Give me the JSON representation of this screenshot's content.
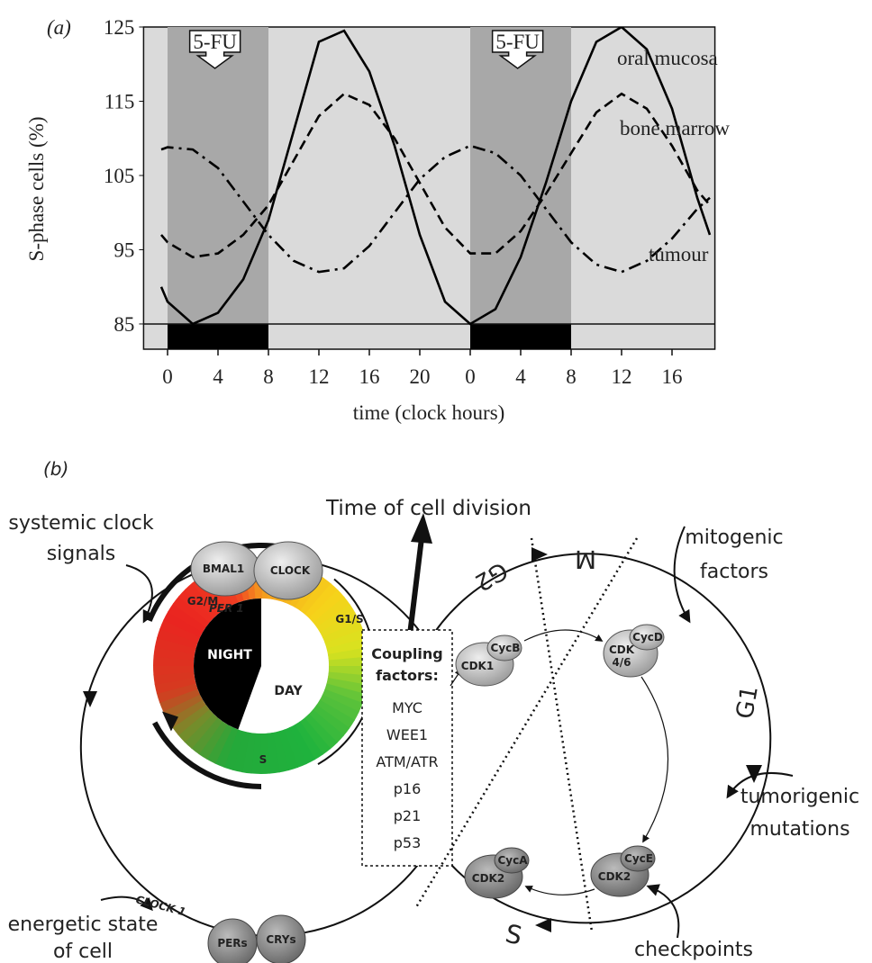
{
  "chart_data": {
    "type": "line",
    "panel_label": "(a)",
    "xlabel": "time (clock hours)",
    "ylabel": "S-phase cells (%)",
    "x": [
      -0.5,
      0,
      2,
      4,
      6,
      8,
      10,
      12,
      14,
      16,
      18,
      20,
      22,
      24,
      26,
      28,
      30,
      32,
      34,
      36,
      38,
      40,
      42,
      43
    ],
    "series": [
      {
        "name": "oral mucosa",
        "color": "#000000",
        "dash": "solid",
        "values": [
          90,
          88,
          85,
          86.5,
          91,
          99,
          111,
          123,
          124.5,
          119,
          109,
          97,
          88,
          85,
          87,
          94,
          104,
          115,
          123,
          125,
          122,
          114,
          102,
          97
        ]
      },
      {
        "name": "bone marrow",
        "color": "#000000",
        "dash": "dashed",
        "values": [
          97,
          96,
          94,
          94.5,
          97,
          101,
          107,
          113,
          116,
          114.5,
          110,
          104,
          98,
          94.5,
          94.5,
          97.5,
          102.5,
          108,
          113.5,
          116,
          114,
          109,
          103,
          101
        ]
      },
      {
        "name": "tumour",
        "color": "#000000",
        "dash": "dashdot",
        "values": [
          108.5,
          108.8,
          108.5,
          106,
          101.5,
          97,
          93.5,
          92,
          92.5,
          95.5,
          100,
          104.5,
          107.5,
          109,
          108,
          105,
          100.5,
          96,
          93,
          92,
          93.5,
          96.5,
          100.5,
          102
        ]
      }
    ],
    "xlim": [
      -1.9,
      43.4
    ],
    "ylim": [
      81.6,
      125
    ],
    "xticks": [
      0,
      4,
      8,
      12,
      16,
      20,
      {
        "value": 24,
        "label": "0"
      },
      {
        "value": 28,
        "label": "4"
      },
      {
        "value": 32,
        "label": "8"
      },
      {
        "value": 36,
        "label": "12"
      },
      {
        "value": 40,
        "label": "16"
      }
    ],
    "yticks": [
      85,
      95,
      105,
      115,
      125
    ],
    "reference_line": 85,
    "shaded": [
      {
        "label": "5-FU",
        "start": 0,
        "end": 8
      },
      {
        "label": "5-FU",
        "start": 24,
        "end": 32
      }
    ]
  },
  "diagram": {
    "panel_label": "(b)",
    "title": "Time of cell division",
    "inputs": [
      [
        "systemic clock",
        "signals"
      ],
      [
        "mitogenic",
        "factors"
      ],
      [
        "tumorigenic",
        "mutations"
      ],
      [
        "checkpoints"
      ],
      [
        "energetic state",
        "of cell"
      ]
    ],
    "clock_proteins": [
      "BMAL1",
      "CLOCK",
      "PERs",
      "CRYs"
    ],
    "genes": [
      "PER 1",
      "CLOCK 1"
    ],
    "ring": {
      "phases": [
        "G2/M",
        "G1/S",
        "S"
      ],
      "night": "NIGHT",
      "day": "DAY"
    },
    "coupling": {
      "title": [
        "Coupling",
        "factors:"
      ],
      "factors": [
        "MYC",
        "WEE1",
        "ATM/ATR",
        "p16",
        "p21",
        "p53"
      ]
    },
    "cell_cycle": {
      "phases": [
        "M",
        "G2",
        "G1",
        "S"
      ],
      "complexes": [
        {
          "cdk": "CDK1",
          "cyclin": "CycB"
        },
        {
          "cdk": "CDK",
          "cdk_line2": "4/6",
          "cyclin": "CycD"
        },
        {
          "cdk": "CDK2",
          "cyclin": "CycE"
        },
        {
          "cdk": "CDK2",
          "cyclin": "CycA"
        }
      ]
    }
  }
}
